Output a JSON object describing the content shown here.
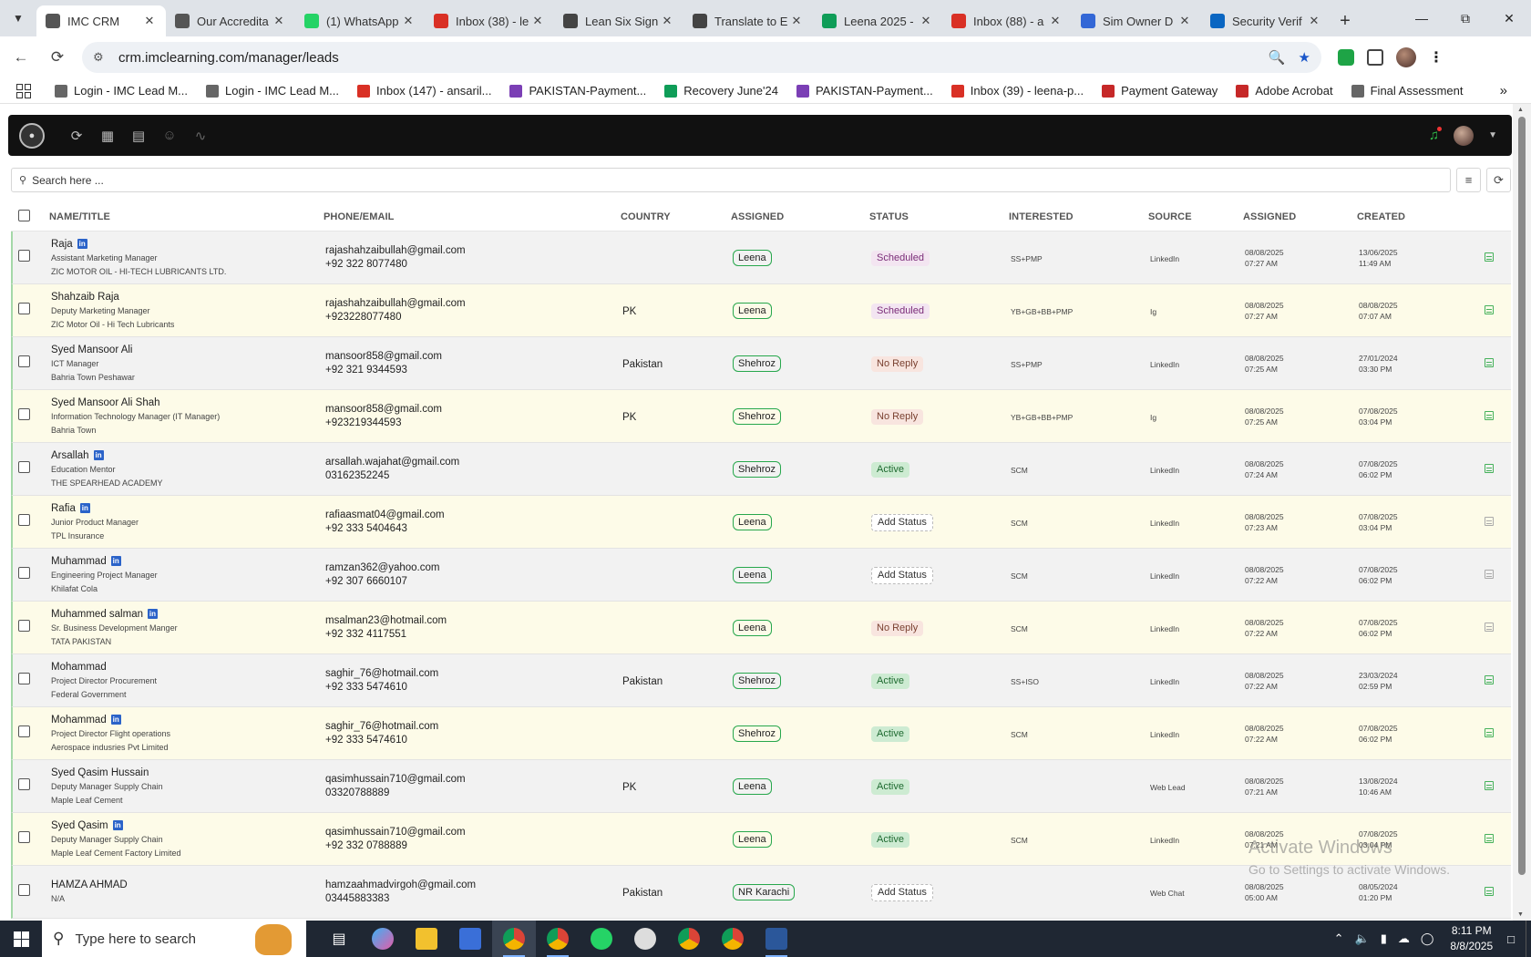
{
  "browser": {
    "tabs": [
      {
        "label": "IMC CRM",
        "icon": "imc-icon",
        "color": "#555555",
        "active": true
      },
      {
        "label": "Our Accredita",
        "icon": "imc-icon",
        "color": "#555555"
      },
      {
        "label": "(1) WhatsApp",
        "icon": "whatsapp-icon",
        "color": "#25d366"
      },
      {
        "label": "Inbox (38) - le",
        "icon": "gmail-icon",
        "color": "#d93025"
      },
      {
        "label": "Lean Six Sign",
        "icon": "chatgpt-icon",
        "color": "#444444"
      },
      {
        "label": "Translate to E",
        "icon": "chatgpt-icon",
        "color": "#444444"
      },
      {
        "label": "Leena 2025 -",
        "icon": "sheets-icon",
        "color": "#0f9d58"
      },
      {
        "label": "Inbox (88) - a",
        "icon": "gmail-icon",
        "color": "#d93025"
      },
      {
        "label": "Sim Owner D",
        "icon": "docs-icon",
        "color": "#3367d6"
      },
      {
        "label": "Security Verif",
        "icon": "linkedin-icon",
        "color": "#0a66c2"
      }
    ],
    "url": "crm.imclearning.com/manager/leads",
    "bookmarks": [
      {
        "label": "Login - IMC Lead M...",
        "color": "#666666"
      },
      {
        "label": "Login - IMC Lead M...",
        "color": "#666666"
      },
      {
        "label": "Inbox (147) - ansaril...",
        "color": "#d93025"
      },
      {
        "label": "PAKISTAN-Payment...",
        "color": "#7b3fb5"
      },
      {
        "label": "Recovery June'24",
        "color": "#0f9d58"
      },
      {
        "label": "PAKISTAN-Payment...",
        "color": "#7b3fb5"
      },
      {
        "label": "Inbox (39) - leena-p...",
        "color": "#d93025"
      },
      {
        "label": "Payment Gateway",
        "color": "#c62828"
      },
      {
        "label": "Adobe Acrobat",
        "color": "#c62828"
      },
      {
        "label": "Final Assessment",
        "color": "#666666"
      }
    ]
  },
  "app": {
    "search_placeholder": "Search here ...",
    "columns": [
      "NAME/TITLE",
      "PHONE/EMAIL",
      "COUNTRY",
      "ASSIGNED",
      "STATUS",
      "INTERESTED",
      "SOURCE",
      "ASSIGNED",
      "CREATED"
    ],
    "leads": [
      {
        "name": "Raja",
        "linkedin": true,
        "title": "Assistant Marketing Manager",
        "company": "ZIC MOTOR OIL - HI-TECH LUBRICANTS LTD.",
        "email": "rajashahzaibullah@gmail.com",
        "phone": "+92 322 8077480",
        "country": "",
        "assigned": "Leena",
        "status": "Scheduled",
        "status_kind": "sched",
        "interested": "SS+PMP",
        "source": "LinkedIn",
        "assigned_date": "08/08/2025",
        "assigned_time": "07:27 AM",
        "created_date": "13/06/2025",
        "created_time": "11:49 AM",
        "doc": "green"
      },
      {
        "name": "Shahzaib Raja",
        "linkedin": false,
        "title": "Deputy Marketing Manager",
        "company": "ZIC Motor Oil - Hi Tech Lubricants",
        "email": "rajashahzaibullah@gmail.com",
        "phone": "+923228077480",
        "country": "PK",
        "assigned": "Leena",
        "status": "Scheduled",
        "status_kind": "sched",
        "interested": "YB+GB+BB+PMP",
        "source": "Ig",
        "assigned_date": "08/08/2025",
        "assigned_time": "07:27 AM",
        "created_date": "08/08/2025",
        "created_time": "07:07 AM",
        "doc": "green"
      },
      {
        "name": "Syed Mansoor Ali",
        "linkedin": false,
        "title": "ICT Manager",
        "company": "Bahria Town Peshawar",
        "email": "mansoor858@gmail.com",
        "phone": "+92 321 9344593",
        "country": "Pakistan",
        "assigned": "Shehroz",
        "status": "No Reply",
        "status_kind": "noreply",
        "interested": "SS+PMP",
        "source": "LinkedIn",
        "assigned_date": "08/08/2025",
        "assigned_time": "07:25 AM",
        "created_date": "27/01/2024",
        "created_time": "03:30 PM",
        "doc": "green"
      },
      {
        "name": "Syed Mansoor Ali Shah",
        "linkedin": false,
        "title": "Information Technology Manager (IT Manager)",
        "company": "Bahria Town",
        "email": "mansoor858@gmail.com",
        "phone": "+923219344593",
        "country": "PK",
        "assigned": "Shehroz",
        "status": "No Reply",
        "status_kind": "noreply",
        "interested": "YB+GB+BB+PMP",
        "source": "Ig",
        "assigned_date": "08/08/2025",
        "assigned_time": "07:25 AM",
        "created_date": "07/08/2025",
        "created_time": "03:04 PM",
        "doc": "green"
      },
      {
        "name": "Arsallah",
        "linkedin": true,
        "title": "Education Mentor",
        "company": "THE SPEARHEAD ACADEMY",
        "email": "arsallah.wajahat@gmail.com",
        "phone": "03162352245",
        "country": "",
        "assigned": "Shehroz",
        "status": "Active",
        "status_kind": "active",
        "interested": "SCM",
        "source": "LinkedIn",
        "assigned_date": "08/08/2025",
        "assigned_time": "07:24 AM",
        "created_date": "07/08/2025",
        "created_time": "06:02 PM",
        "doc": "green"
      },
      {
        "name": "Rafia",
        "linkedin": true,
        "title": "Junior Product Manager",
        "company": "TPL Insurance",
        "email": "rafiaasmat04@gmail.com",
        "phone": "+92 333 5404643",
        "country": "",
        "assigned": "Leena",
        "status": "Add Status",
        "status_kind": "add",
        "interested": "SCM",
        "source": "LinkedIn",
        "assigned_date": "08/08/2025",
        "assigned_time": "07:23 AM",
        "created_date": "07/08/2025",
        "created_time": "03:04 PM",
        "doc": "grey"
      },
      {
        "name": "Muhammad",
        "linkedin": true,
        "title": "Engineering Project Manager",
        "company": "Khilafat Cola",
        "email": "ramzan362@yahoo.com",
        "phone": "+92 307 6660107",
        "country": "",
        "assigned": "Leena",
        "status": "Add Status",
        "status_kind": "add",
        "interested": "SCM",
        "source": "LinkedIn",
        "assigned_date": "08/08/2025",
        "assigned_time": "07:22 AM",
        "created_date": "07/08/2025",
        "created_time": "06:02 PM",
        "doc": "grey"
      },
      {
        "name": "Muhammed salman",
        "linkedin": true,
        "title": "Sr. Business Development Manger",
        "company": "TATA PAKISTAN",
        "email": "msalman23@hotmail.com",
        "phone": "+92 332 4117551",
        "country": "",
        "assigned": "Leena",
        "status": "No Reply",
        "status_kind": "noreply",
        "interested": "SCM",
        "source": "LinkedIn",
        "assigned_date": "08/08/2025",
        "assigned_time": "07:22 AM",
        "created_date": "07/08/2025",
        "created_time": "06:02 PM",
        "doc": "grey"
      },
      {
        "name": "Mohammad",
        "linkedin": false,
        "title": "Project Director Procurement",
        "company": "Federal Government",
        "email": "saghir_76@hotmail.com",
        "phone": "+92 333 5474610",
        "country": "Pakistan",
        "assigned": "Shehroz",
        "status": "Active",
        "status_kind": "active",
        "interested": "SS+ISO",
        "source": "LinkedIn",
        "assigned_date": "08/08/2025",
        "assigned_time": "07:22 AM",
        "created_date": "23/03/2024",
        "created_time": "02:59 PM",
        "doc": "green"
      },
      {
        "name": "Mohammad",
        "linkedin": true,
        "title": "Project Director Flight operations",
        "company": "Aerospace indusries Pvt Limited",
        "email": "saghir_76@hotmail.com",
        "phone": "+92 333 5474610",
        "country": "",
        "assigned": "Shehroz",
        "status": "Active",
        "status_kind": "active",
        "interested": "SCM",
        "source": "LinkedIn",
        "assigned_date": "08/08/2025",
        "assigned_time": "07:22 AM",
        "created_date": "07/08/2025",
        "created_time": "06:02 PM",
        "doc": "green"
      },
      {
        "name": "Syed Qasim Hussain",
        "linkedin": false,
        "title": "Deputy Manager Supply Chain",
        "company": "Maple Leaf Cement",
        "email": "qasimhussain710@gmail.com",
        "phone": "03320788889",
        "country": "PK",
        "assigned": "Leena",
        "status": "Active",
        "status_kind": "active",
        "interested": "",
        "source": "Web Lead",
        "assigned_date": "08/08/2025",
        "assigned_time": "07:21 AM",
        "created_date": "13/08/2024",
        "created_time": "10:46 AM",
        "doc": "green"
      },
      {
        "name": "Syed Qasim",
        "linkedin": true,
        "title": "Deputy Manager Supply Chain",
        "company": "Maple Leaf Cement Factory Limited",
        "email": "qasimhussain710@gmail.com",
        "phone": "+92 332 0788889",
        "country": "",
        "assigned": "Leena",
        "status": "Active",
        "status_kind": "active",
        "interested": "SCM",
        "source": "LinkedIn",
        "assigned_date": "08/08/2025",
        "assigned_time": "07:21 AM",
        "created_date": "07/08/2025",
        "created_time": "03:04 PM",
        "doc": "green"
      },
      {
        "name": "HAMZA AHMAD",
        "linkedin": false,
        "title": "",
        "company": "N/A",
        "email": "hamzaahmadvirgoh@gmail.com",
        "phone": "03445883383",
        "country": "Pakistan",
        "assigned": "NR Karachi",
        "status": "Add Status",
        "status_kind": "add",
        "interested": "",
        "source": "Web Chat",
        "assigned_date": "08/08/2025",
        "assigned_time": "05:00 AM",
        "created_date": "08/05/2024",
        "created_time": "01:20 PM",
        "doc": "green"
      }
    ]
  },
  "watermark": {
    "line1": "Activate Windows",
    "line2": "Go to Settings to activate Windows."
  },
  "taskbar": {
    "search_placeholder": "Type here to search",
    "time": "8:11 PM",
    "date": "8/8/2025"
  }
}
